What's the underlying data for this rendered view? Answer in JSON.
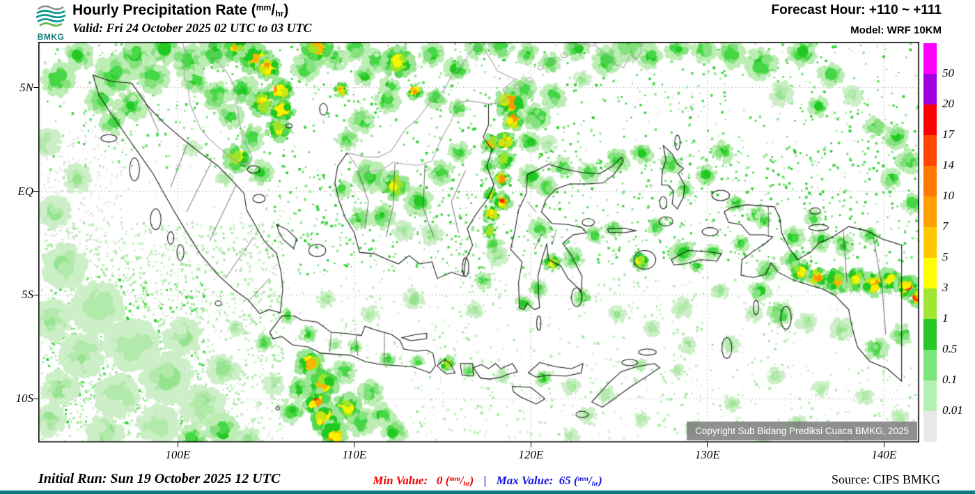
{
  "header": {
    "logo_text": "BMKG",
    "title_main": "Hourly Precipitation Rate ",
    "valid_line": "Valid: Fri 24 October 2025 02 UTC to 03 UTC",
    "forecast_hour": "Forecast Hour: +110 ~ +111",
    "model": "Model: WRF 10KM"
  },
  "units": {
    "num": "mm",
    "den": "hr"
  },
  "map": {
    "copyright": "Copyright Sub Bidang Prediksi Cuaca BMKG, 2025",
    "lat_ticks": [
      {
        "label": "5N",
        "deg": 5
      },
      {
        "label": "EQ",
        "deg": 0
      },
      {
        "label": "5S",
        "deg": -5
      },
      {
        "label": "10S",
        "deg": -10
      }
    ],
    "lon_ticks": [
      {
        "label": "100E",
        "deg": 100
      },
      {
        "label": "110E",
        "deg": 110
      },
      {
        "label": "120E",
        "deg": 120
      },
      {
        "label": "130E",
        "deg": 130
      },
      {
        "label": "140E",
        "deg": 140
      }
    ]
  },
  "footer": {
    "initial_run": "Initial Run: Sun 19 October 2025 12 UTC",
    "min_label": "Min Value:",
    "min_value": "0",
    "separator": "|",
    "max_label": "Max Value:",
    "max_value": "65",
    "source": "Source: CIPS BMKG"
  },
  "chart_data": {
    "type": "heatmap",
    "title": "Hourly Precipitation Rate (mm/hr)",
    "valid": "Fri 24 October 2025 02 UTC to 03 UTC",
    "forecast_hour": "+110 ~ +111",
    "model": "WRF 10KM",
    "initial_run": "Sun 19 October 2025 12 UTC",
    "min_value": 0,
    "max_value": 65,
    "lon_range": [
      92.1,
      142.0
    ],
    "lat_range": [
      -12.1,
      7.2
    ],
    "grid_lons": [
      100,
      110,
      120,
      130,
      140
    ],
    "grid_lats": [
      5,
      0,
      -5,
      -10
    ],
    "legend_values": [
      "50",
      "20",
      "17",
      "14",
      "10",
      "7",
      "5",
      "3",
      "1",
      "0.5",
      "0.1",
      "0.01"
    ],
    "legend_colors": [
      "#FF00FF",
      "#A000E0",
      "#FF0000",
      "#FF4600",
      "#FF7800",
      "#FFA000",
      "#FFC800",
      "#FFFF00",
      "#A0E632",
      "#28C828",
      "#78E678",
      "#B4F0B4",
      "#E8E8E8"
    ],
    "precip_cells": [
      [
        96.4,
        5.6,
        1.1,
        2
      ],
      [
        97.6,
        6.5,
        0.9,
        2
      ],
      [
        99.2,
        6.9,
        0.9,
        2
      ],
      [
        95.6,
        4.4,
        0.8,
        2
      ],
      [
        97.3,
        4.1,
        0.9,
        2
      ],
      [
        96.3,
        3.3,
        0.7,
        2
      ],
      [
        98.6,
        5.5,
        0.9,
        2
      ],
      [
        93.2,
        5.4,
        0.9,
        2
      ],
      [
        94.4,
        6.5,
        0.8,
        2
      ],
      [
        100.6,
        6.3,
        0.9,
        2
      ],
      [
        102.1,
        6.7,
        0.9,
        2
      ],
      [
        103.3,
        6.9,
        0.8,
        3
      ],
      [
        104.4,
        6.4,
        0.9,
        3
      ],
      [
        105.1,
        5.95,
        0.7,
        4
      ],
      [
        105.8,
        4.85,
        0.7,
        4
      ],
      [
        105.9,
        3.9,
        0.7,
        4
      ],
      [
        105.7,
        3.0,
        0.7,
        3
      ],
      [
        104.8,
        4.3,
        0.8,
        3
      ],
      [
        103.7,
        4.9,
        0.8,
        2
      ],
      [
        102.2,
        4.6,
        0.8,
        2
      ],
      [
        101.0,
        5.3,
        0.7,
        2
      ],
      [
        103.0,
        3.6,
        0.7,
        2
      ],
      [
        104.2,
        2.6,
        0.7,
        2
      ],
      [
        103.4,
        1.6,
        0.8,
        3
      ],
      [
        104.7,
        0.9,
        0.7,
        2
      ],
      [
        102.6,
        0.6,
        0.5,
        1
      ],
      [
        100.8,
        2.1,
        0.5,
        1
      ],
      [
        107.3,
        6.0,
        0.8,
        2
      ],
      [
        107.9,
        6.9,
        0.9,
        3
      ],
      [
        108.9,
        6.4,
        0.7,
        2
      ],
      [
        109.25,
        4.9,
        0.45,
        4
      ],
      [
        110.1,
        6.9,
        0.8,
        2
      ],
      [
        111.2,
        6.3,
        0.7,
        2
      ],
      [
        112.5,
        6.2,
        0.9,
        3
      ],
      [
        113.4,
        4.8,
        0.5,
        4
      ],
      [
        112.0,
        5.0,
        0.6,
        2
      ],
      [
        110.6,
        5.6,
        0.6,
        2
      ],
      [
        114.4,
        6.6,
        0.7,
        2
      ],
      [
        115.8,
        5.9,
        0.7,
        2
      ],
      [
        116.9,
        6.9,
        0.6,
        2
      ],
      [
        111.9,
        4.35,
        0.7,
        2
      ],
      [
        110.4,
        3.4,
        0.7,
        2
      ],
      [
        109.6,
        2.5,
        0.6,
        2
      ],
      [
        114.6,
        4.5,
        0.6,
        2
      ],
      [
        115.9,
        4.0,
        0.5,
        2
      ],
      [
        118.3,
        7.0,
        0.7,
        2
      ],
      [
        119.8,
        6.6,
        0.6,
        2
      ],
      [
        118.85,
        4.25,
        0.85,
        4
      ],
      [
        119.0,
        3.4,
        0.6,
        4
      ],
      [
        118.55,
        2.4,
        0.6,
        4
      ],
      [
        118.5,
        1.5,
        0.55,
        3
      ],
      [
        118.35,
        0.6,
        0.5,
        4
      ],
      [
        118.4,
        -0.5,
        0.55,
        4
      ],
      [
        117.8,
        2.3,
        0.6,
        3
      ],
      [
        117.65,
        1.2,
        0.5,
        2
      ],
      [
        117.75,
        -0.2,
        0.45,
        3
      ],
      [
        117.8,
        -1.1,
        0.5,
        4
      ],
      [
        117.7,
        -1.9,
        0.45,
        3
      ],
      [
        119.6,
        4.9,
        0.7,
        2
      ],
      [
        120.3,
        3.6,
        0.8,
        2
      ],
      [
        121.3,
        4.6,
        0.7,
        2
      ],
      [
        119.9,
        2.4,
        0.6,
        2
      ],
      [
        121.0,
        2.3,
        0.5,
        1
      ],
      [
        122.9,
        5.4,
        0.5,
        1
      ],
      [
        110.9,
        0.7,
        0.9,
        2
      ],
      [
        112.3,
        0.3,
        0.8,
        3
      ],
      [
        113.6,
        -0.5,
        0.8,
        2
      ],
      [
        111.6,
        -1.2,
        0.7,
        2
      ],
      [
        114.9,
        0.9,
        0.7,
        2
      ],
      [
        115.9,
        1.9,
        0.6,
        2
      ],
      [
        110.3,
        -1.3,
        0.6,
        2
      ],
      [
        112.8,
        -1.9,
        0.6,
        1
      ],
      [
        114.4,
        -2.1,
        0.6,
        1
      ],
      [
        109.3,
        0.1,
        0.5,
        2
      ],
      [
        120.0,
        0.7,
        0.7,
        2
      ],
      [
        120.9,
        0.2,
        0.6,
        2
      ],
      [
        121.8,
        1.15,
        0.6,
        2
      ],
      [
        123.3,
        0.9,
        0.6,
        2
      ],
      [
        124.9,
        1.5,
        0.7,
        2
      ],
      [
        126.3,
        1.8,
        0.6,
        2
      ],
      [
        120.5,
        -1.8,
        0.6,
        2
      ],
      [
        121.2,
        -3.45,
        0.55,
        3
      ],
      [
        122.4,
        -3.2,
        0.6,
        2
      ],
      [
        120.4,
        -4.7,
        0.5,
        2
      ],
      [
        122.9,
        -5.1,
        0.5,
        2
      ],
      [
        119.6,
        -5.4,
        0.5,
        2
      ],
      [
        123.6,
        -2.1,
        0.5,
        2
      ],
      [
        124.7,
        -1.8,
        0.5,
        2
      ],
      [
        117.9,
        -2.6,
        0.5,
        2
      ],
      [
        118.1,
        -3.1,
        0.6,
        1
      ],
      [
        117.3,
        -4.3,
        0.5,
        2
      ],
      [
        125.6,
        7.0,
        0.9,
        2
      ],
      [
        124.3,
        6.3,
        0.8,
        2
      ],
      [
        126.7,
        6.5,
        0.7,
        2
      ],
      [
        122.6,
        6.9,
        0.7,
        2
      ],
      [
        121.1,
        6.2,
        0.6,
        2
      ],
      [
        128.3,
        6.9,
        0.7,
        2
      ],
      [
        129.8,
        6.8,
        0.7,
        2
      ],
      [
        131.4,
        6.6,
        0.8,
        2
      ],
      [
        133.0,
        6.1,
        0.9,
        2
      ],
      [
        135.4,
        6.7,
        0.8,
        2
      ],
      [
        137.0,
        5.6,
        0.7,
        2
      ],
      [
        134.2,
        4.7,
        0.7,
        1
      ],
      [
        136.3,
        4.1,
        0.6,
        2
      ],
      [
        138.2,
        4.6,
        0.6,
        1
      ],
      [
        139.5,
        3.1,
        0.6,
        2
      ],
      [
        140.7,
        2.6,
        0.7,
        2
      ],
      [
        141.4,
        1.4,
        0.7,
        2
      ],
      [
        140.4,
        0.6,
        0.6,
        2
      ],
      [
        141.6,
        -0.6,
        0.6,
        2
      ],
      [
        129.9,
        0.8,
        0.6,
        2
      ],
      [
        130.9,
        1.9,
        0.6,
        2
      ],
      [
        127.9,
        1.3,
        0.6,
        2
      ],
      [
        128.7,
        0.1,
        0.5,
        2
      ],
      [
        127.1,
        -1.7,
        0.5,
        2
      ],
      [
        126.2,
        -3.35,
        0.55,
        3
      ],
      [
        128.6,
        -2.95,
        0.7,
        2
      ],
      [
        130.3,
        -2.95,
        0.5,
        2
      ],
      [
        129.4,
        -3.6,
        0.4,
        2
      ],
      [
        131.9,
        -2.5,
        0.5,
        2
      ],
      [
        132.7,
        -1.1,
        0.5,
        2
      ],
      [
        133.4,
        -3.8,
        0.6,
        2
      ],
      [
        134.8,
        -3.3,
        0.6,
        2
      ],
      [
        135.3,
        -3.9,
        0.65,
        3
      ],
      [
        136.2,
        -4.15,
        0.6,
        4
      ],
      [
        137.3,
        -4.3,
        0.75,
        3
      ],
      [
        138.4,
        -4.25,
        0.7,
        3
      ],
      [
        139.4,
        -4.5,
        0.7,
        4
      ],
      [
        140.3,
        -4.3,
        0.7,
        3
      ],
      [
        141.3,
        -4.6,
        0.7,
        4
      ],
      [
        141.9,
        -5.1,
        0.6,
        4
      ],
      [
        134.9,
        -2.2,
        0.6,
        2
      ],
      [
        136.4,
        -2.4,
        0.6,
        2
      ],
      [
        137.7,
        -2.6,
        0.6,
        2
      ],
      [
        139.2,
        -2.1,
        0.5,
        2
      ],
      [
        133.2,
        -1.4,
        0.5,
        2
      ],
      [
        131.6,
        -0.6,
        0.5,
        2
      ],
      [
        136.0,
        -1.3,
        0.5,
        2
      ],
      [
        133.0,
        -4.8,
        0.6,
        2
      ],
      [
        134.1,
        -5.9,
        0.7,
        2
      ],
      [
        132.6,
        -5.9,
        0.5,
        1
      ],
      [
        130.7,
        -4.8,
        0.5,
        1
      ],
      [
        128.6,
        -5.6,
        0.6,
        1
      ],
      [
        135.6,
        -6.3,
        0.6,
        1
      ],
      [
        137.6,
        -6.7,
        0.7,
        1
      ],
      [
        139.6,
        -7.6,
        0.7,
        2
      ],
      [
        141.0,
        -6.9,
        0.6,
        2
      ],
      [
        131.3,
        -7.4,
        0.5,
        1
      ],
      [
        124.9,
        -5.9,
        0.5,
        1
      ],
      [
        126.9,
        -6.6,
        0.5,
        1
      ],
      [
        128.9,
        -7.4,
        0.5,
        1
      ],
      [
        107.5,
        -8.3,
        0.85,
        3
      ],
      [
        108.2,
        -9.3,
        0.9,
        3
      ],
      [
        107.9,
        -10.2,
        0.8,
        4
      ],
      [
        108.35,
        -11.0,
        0.85,
        4
      ],
      [
        108.8,
        -11.7,
        0.8,
        4
      ],
      [
        109.6,
        -10.4,
        0.8,
        3
      ],
      [
        110.4,
        -11.1,
        0.8,
        2
      ],
      [
        106.9,
        -9.5,
        0.7,
        2
      ],
      [
        109.4,
        -8.7,
        0.7,
        2
      ],
      [
        110.9,
        -9.7,
        0.7,
        2
      ],
      [
        111.6,
        -10.8,
        0.7,
        2
      ],
      [
        106.5,
        -10.6,
        0.7,
        2
      ],
      [
        105.4,
        -9.3,
        0.6,
        1
      ],
      [
        112.3,
        -11.6,
        0.7,
        2
      ],
      [
        102.5,
        -11.5,
        0.9,
        2
      ],
      [
        100.9,
        -11.9,
        0.8,
        2
      ],
      [
        104.0,
        -12.0,
        0.7,
        1
      ],
      [
        107.4,
        -6.9,
        0.5,
        2
      ],
      [
        108.9,
        -7.4,
        0.4,
        1
      ],
      [
        110.0,
        -7.5,
        0.4,
        2
      ],
      [
        111.9,
        -8.1,
        0.45,
        2
      ],
      [
        113.6,
        -8.2,
        0.4,
        2
      ],
      [
        115.25,
        -8.3,
        0.45,
        3
      ],
      [
        116.5,
        -8.65,
        0.4,
        2
      ],
      [
        118.4,
        -8.9,
        0.45,
        1
      ],
      [
        120.7,
        -9.0,
        0.5,
        2
      ],
      [
        122.3,
        -9.4,
        0.5,
        1
      ],
      [
        124.3,
        -9.8,
        0.5,
        1
      ],
      [
        123.2,
        -10.8,
        0.5,
        1
      ],
      [
        106.2,
        -6.0,
        0.45,
        2
      ],
      [
        104.9,
        -7.3,
        0.5,
        2
      ],
      [
        103.3,
        -6.6,
        0.5,
        1
      ],
      [
        95.4,
        -5.6,
        1.4,
        1
      ],
      [
        97.4,
        -7.4,
        1.4,
        1
      ],
      [
        99.4,
        -9.0,
        1.4,
        1
      ],
      [
        93.6,
        -3.6,
        1.2,
        1
      ],
      [
        94.6,
        -7.9,
        1.2,
        1
      ],
      [
        101.4,
        -10.4,
        1.2,
        1
      ],
      [
        96.6,
        -9.9,
        1.2,
        1
      ],
      [
        92.9,
        -6.2,
        1.1,
        1
      ],
      [
        98.9,
        -11.3,
        1.1,
        1
      ],
      [
        93.3,
        -9.5,
        1.0,
        1
      ],
      [
        95.9,
        -11.6,
        1.0,
        1
      ],
      [
        92.7,
        -11.0,
        0.9,
        1
      ],
      [
        100.3,
        -7.0,
        1.0,
        1
      ],
      [
        102.6,
        -8.6,
        0.9,
        1
      ],
      [
        93.0,
        -1.0,
        0.9,
        1
      ],
      [
        94.3,
        0.6,
        0.8,
        1
      ],
      [
        92.6,
        2.4,
        0.8,
        1
      ],
      [
        116.8,
        -5.7,
        0.5,
        1
      ],
      [
        113.4,
        -5.2,
        0.6,
        1
      ],
      [
        110.9,
        -5.9,
        0.5,
        1
      ],
      [
        108.4,
        -5.2,
        0.5,
        1
      ],
      [
        126.2,
        -8.4,
        0.4,
        1
      ],
      [
        128.3,
        -8.6,
        0.4,
        1
      ],
      [
        133.9,
        -8.9,
        0.5,
        1
      ],
      [
        136.4,
        -9.5,
        0.5,
        1
      ],
      [
        138.9,
        -9.9,
        0.5,
        1
      ],
      [
        135.1,
        -11.2,
        0.5,
        1
      ],
      [
        131.4,
        -10.2,
        0.5,
        1
      ],
      [
        129.2,
        -11.4,
        0.5,
        1
      ],
      [
        137.9,
        -11.6,
        0.5,
        1
      ],
      [
        140.9,
        -10.9,
        0.5,
        1
      ],
      [
        133.2,
        -12.0,
        0.4,
        1
      ],
      [
        122.3,
        -11.8,
        0.45,
        1
      ],
      [
        126.3,
        -11.0,
        0.45,
        1
      ]
    ],
    "speckle_fields": [
      [
        92.3,
        -1.5,
        106.0,
        -12.05,
        1600,
        1
      ],
      [
        92.6,
        -4.0,
        101.5,
        -11.2,
        400,
        2
      ],
      [
        92.3,
        7.15,
        142.0,
        1.0,
        850,
        2
      ],
      [
        105.0,
        1.0,
        120.0,
        -4.0,
        380,
        2
      ],
      [
        120.0,
        2.0,
        142.0,
        -3.5,
        520,
        2
      ],
      [
        109.0,
        -4.0,
        135.0,
        -8.5,
        320,
        1
      ],
      [
        113.0,
        -8.5,
        142.0,
        -12.05,
        280,
        1
      ],
      [
        92.3,
        7.15,
        142.0,
        -12.05,
        650,
        0
      ],
      [
        92.3,
        3.0,
        97.0,
        -3.0,
        220,
        0
      ]
    ]
  }
}
